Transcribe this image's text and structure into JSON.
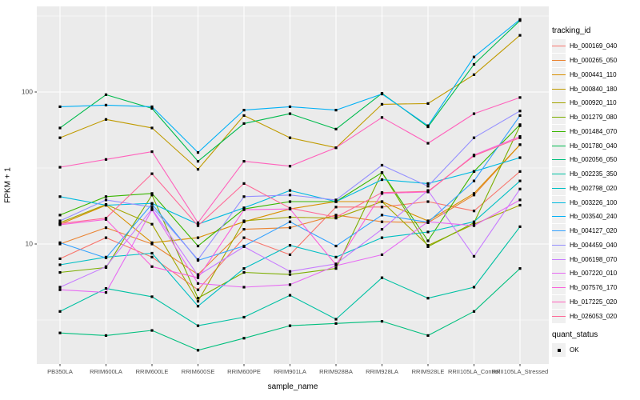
{
  "y_axis": {
    "label": "FPKM + 1",
    "ticks": [
      {
        "label": "100",
        "value": 100
      },
      {
        "label": "10",
        "value": 10
      }
    ]
  },
  "x_axis": {
    "label": "sample_name"
  },
  "legend": {
    "tracking_title": "tracking_id",
    "quant_title": "quant_status",
    "quant_items": [
      {
        "label": "OK"
      }
    ]
  },
  "colors": {
    "panel_bg": "#EBEBEB",
    "grid": "#FFFFFF",
    "point": "#000000",
    "tick_text": "#4D4D4D",
    "tick_mark": "#333333",
    "key_bg": "#F0F0F0"
  },
  "chart_data": {
    "type": "line",
    "title": "",
    "xlabel": "sample_name",
    "ylabel": "FPKM + 1",
    "y_scale": "log10",
    "ylim": [
      1.6,
      355
    ],
    "grid": true,
    "legend_position": "right",
    "point_shape": "filled-square",
    "categories": [
      "PB350LA",
      "RRIM600LA",
      "RRIM600LE",
      "RRIM600SE",
      "RRIM600PE",
      "RRIM901LA",
      "RRIM928BA",
      "RRIM928LA",
      "RRIM928LE",
      "RRII105LA_Control",
      "RRII105LA_Stressed"
    ],
    "series": [
      {
        "name": "Hb_000169_040",
        "color": "#F8766D",
        "values": [
          8,
          11,
          8.2,
          5.0,
          11,
          8.5,
          17.5,
          17.5,
          19,
          16.5,
          30
        ]
      },
      {
        "name": "Hb_000265_050",
        "color": "#EA8331",
        "values": [
          10,
          12.8,
          10,
          6.3,
          12.5,
          12.8,
          15.5,
          14,
          13.8,
          21,
          45
        ]
      },
      {
        "name": "Hb_000441_110",
        "color": "#D89000",
        "values": [
          13.5,
          18,
          10.2,
          11,
          14,
          17,
          19,
          19,
          14.2,
          21.5,
          45
        ]
      },
      {
        "name": "Hb_000840_180",
        "color": "#C09B00",
        "values": [
          50,
          66,
          58,
          31,
          70,
          50,
          43,
          83,
          84,
          130,
          236
        ]
      },
      {
        "name": "Hb_000920_110",
        "color": "#A3A500",
        "values": [
          13.8,
          18.2,
          13.5,
          4.2,
          14.2,
          15,
          14.8,
          19,
          9.8,
          13.5,
          18
        ]
      },
      {
        "name": "Hb_001279_080",
        "color": "#7CAE00",
        "values": [
          6.5,
          7.0,
          21,
          4.4,
          6.5,
          6.3,
          6.9,
          29.5,
          9.6,
          13.8,
          60
        ]
      },
      {
        "name": "Hb_001484_070",
        "color": "#39B600",
        "values": [
          15.5,
          20.5,
          21.5,
          9.7,
          17,
          19,
          19,
          29.5,
          10.5,
          30,
          61
        ]
      },
      {
        "name": "Hb_001780_040",
        "color": "#00BB4E",
        "values": [
          58,
          96,
          78,
          35,
          62,
          72,
          57,
          98,
          59,
          152,
          295
        ]
      },
      {
        "name": "Hb_002056_050",
        "color": "#00BF7D",
        "values": [
          2.6,
          2.5,
          2.7,
          2.0,
          2.4,
          2.9,
          3.0,
          3.1,
          2.5,
          3.6,
          6.9
        ]
      },
      {
        "name": "Hb_002235_350",
        "color": "#00C1A3",
        "values": [
          3.6,
          5.1,
          4.5,
          2.9,
          3.3,
          4.6,
          3.2,
          6.0,
          4.4,
          5.2,
          13
        ]
      },
      {
        "name": "Hb_002798_020",
        "color": "#00BFC4",
        "values": [
          7.3,
          8.2,
          8.7,
          3.9,
          6.9,
          9.8,
          8.2,
          11,
          12,
          14,
          26
        ]
      },
      {
        "name": "Hb_003226_100",
        "color": "#00BAE0",
        "values": [
          20.5,
          18,
          18.5,
          13.5,
          17.3,
          22.5,
          19,
          26.5,
          25,
          30,
          37
        ]
      },
      {
        "name": "Hb_003540_240",
        "color": "#00B0F6",
        "values": [
          80,
          82,
          80,
          40,
          76,
          80,
          76,
          97,
          60,
          170,
          300
        ]
      },
      {
        "name": "Hb_004127_020",
        "color": "#35A2FF",
        "values": [
          10.2,
          8.1,
          18.3,
          7.8,
          9.7,
          14,
          9.7,
          15.5,
          13.9,
          26,
          70
        ]
      },
      {
        "name": "Hb_004459_040",
        "color": "#9590FF",
        "values": [
          14.2,
          19.5,
          17.5,
          7.9,
          20.5,
          21,
          19.5,
          33,
          24,
          50,
          75
        ]
      },
      {
        "name": "Hb_006198_070",
        "color": "#C77CFF",
        "values": [
          5.2,
          7.1,
          17,
          6.2,
          9.6,
          6.6,
          7.4,
          12.5,
          22.5,
          8.3,
          23
        ]
      },
      {
        "name": "Hb_007220_010",
        "color": "#E76BF3",
        "values": [
          5.0,
          4.8,
          16.8,
          5.5,
          5.2,
          5.4,
          7.2,
          8.5,
          14,
          13.2,
          19.5
        ]
      },
      {
        "name": "Hb_007576_170",
        "color": "#FA62DB",
        "values": [
          13.4,
          14.5,
          7.1,
          6.0,
          16.8,
          17,
          7.3,
          21.5,
          22,
          38.5,
          51
        ]
      },
      {
        "name": "Hb_017225_020",
        "color": "#FF62BC",
        "values": [
          32,
          36,
          40.5,
          13.8,
          35,
          32.5,
          43,
          68,
          46,
          72,
          92
        ]
      },
      {
        "name": "Hb_026053_020",
        "color": "#FF6A98",
        "values": [
          13.6,
          14.8,
          29,
          13.2,
          25,
          17.2,
          15,
          21.8,
          22.2,
          38,
          50
        ]
      }
    ]
  }
}
